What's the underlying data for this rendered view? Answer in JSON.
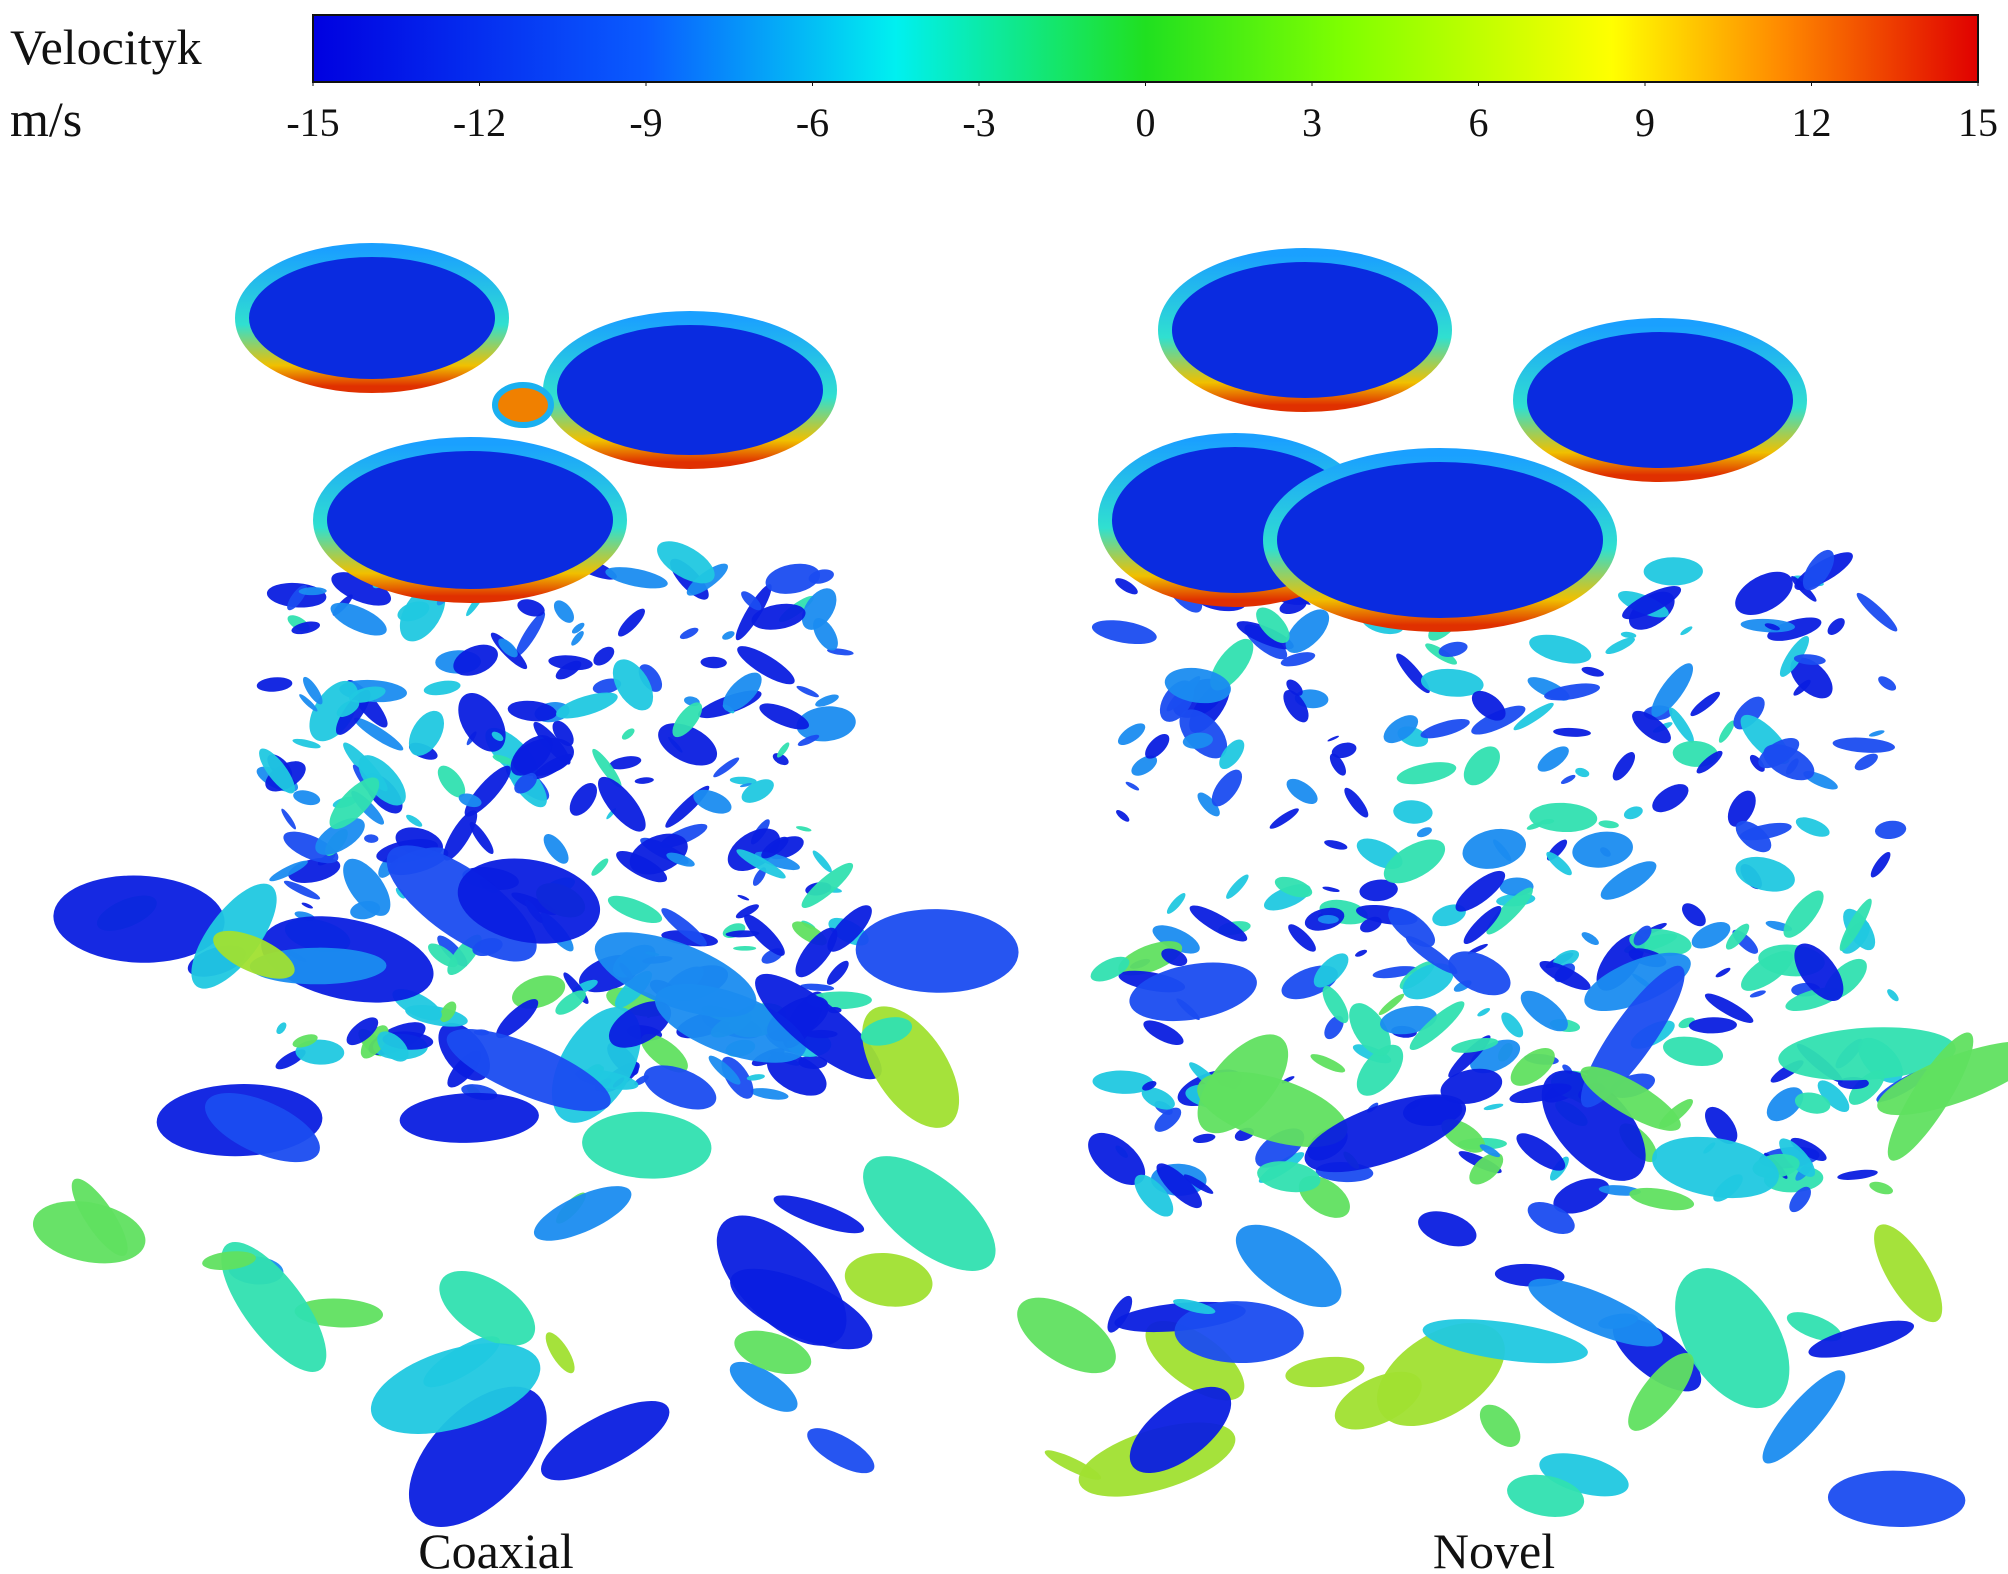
{
  "colorbar": {
    "label": "Velocityk",
    "unit": "m/s",
    "lim": [
      -15,
      15
    ],
    "ticks": [
      -15,
      -12,
      -9,
      -6,
      -3,
      0,
      3,
      6,
      9,
      12,
      15
    ]
  },
  "panels": [
    {
      "label": "Coaxial"
    },
    {
      "label": "Novel"
    }
  ]
}
